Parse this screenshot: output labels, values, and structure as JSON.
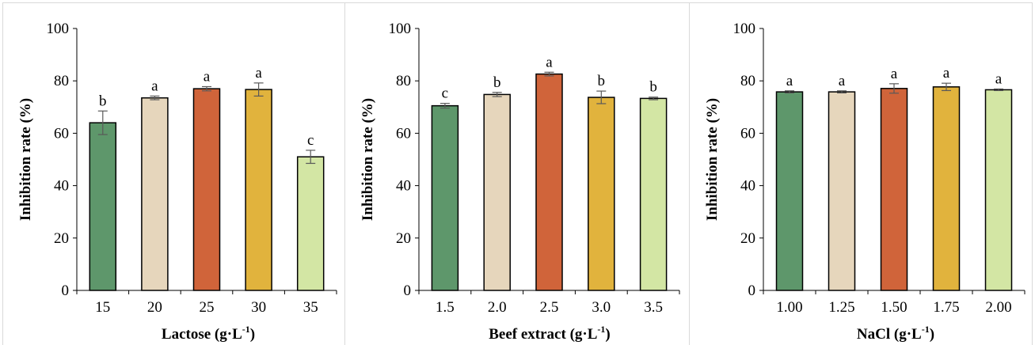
{
  "chart_data": [
    {
      "type": "bar",
      "xlabel": "Lactose (g·L-1)",
      "xlabel_base": "Lactose (g·L",
      "xlabel_sup": "-1",
      "xlabel_end": ")",
      "ylabel": "Inhibition rate (%)",
      "ylim": [
        0,
        100
      ],
      "yticks": [
        "0",
        "20",
        "40",
        "60",
        "80",
        "100"
      ],
      "categories": [
        "15",
        "20",
        "25",
        "30",
        "35"
      ],
      "values": [
        64,
        73.5,
        77,
        76.7,
        51
      ],
      "errors": [
        4.5,
        0.7,
        0.8,
        2.5,
        2.5
      ],
      "letters": [
        "b",
        "a",
        "a",
        "a",
        "c"
      ],
      "colors": [
        "#5e976b",
        "#e6d6bc",
        "#d0643a",
        "#e1b33d",
        "#d3e6a4"
      ],
      "grid": false
    },
    {
      "type": "bar",
      "xlabel": "Beef extract (g·L-1)",
      "xlabel_base": "Beef extract (g·L",
      "xlabel_sup": "-1",
      "xlabel_end": ")",
      "ylabel": "Inhibition rate (%)",
      "ylim": [
        0,
        100
      ],
      "yticks": [
        "0",
        "20",
        "40",
        "60",
        "80",
        "100"
      ],
      "categories": [
        "1.5",
        "2.0",
        "2.5",
        "3.0",
        "3.5"
      ],
      "values": [
        70.5,
        74.8,
        82.6,
        73.7,
        73.3
      ],
      "errors": [
        0.9,
        0.8,
        0.7,
        2.4,
        0.5
      ],
      "letters": [
        "c",
        "b",
        "a",
        "b",
        "b"
      ],
      "colors": [
        "#5e976b",
        "#e6d6bc",
        "#d0643a",
        "#e1b33d",
        "#d3e6a4"
      ],
      "grid": false
    },
    {
      "type": "bar",
      "xlabel": "NaCl (g·L-1)",
      "xlabel_base": "NaCl (g·L",
      "xlabel_sup": "-1",
      "xlabel_end": ")",
      "ylabel": "Inhibition rate (%)",
      "ylim": [
        0,
        100
      ],
      "yticks": [
        "0",
        "20",
        "40",
        "60",
        "80",
        "100"
      ],
      "categories": [
        "1.00",
        "1.25",
        "1.50",
        "1.75",
        "2.00"
      ],
      "values": [
        75.8,
        75.8,
        77.1,
        77.7,
        76.6
      ],
      "errors": [
        0.4,
        0.4,
        1.8,
        1.4,
        0.3
      ],
      "letters": [
        "a",
        "a",
        "a",
        "a",
        "a"
      ],
      "colors": [
        "#5e976b",
        "#e6d6bc",
        "#d0643a",
        "#e1b33d",
        "#d3e6a4"
      ],
      "grid": false
    }
  ]
}
